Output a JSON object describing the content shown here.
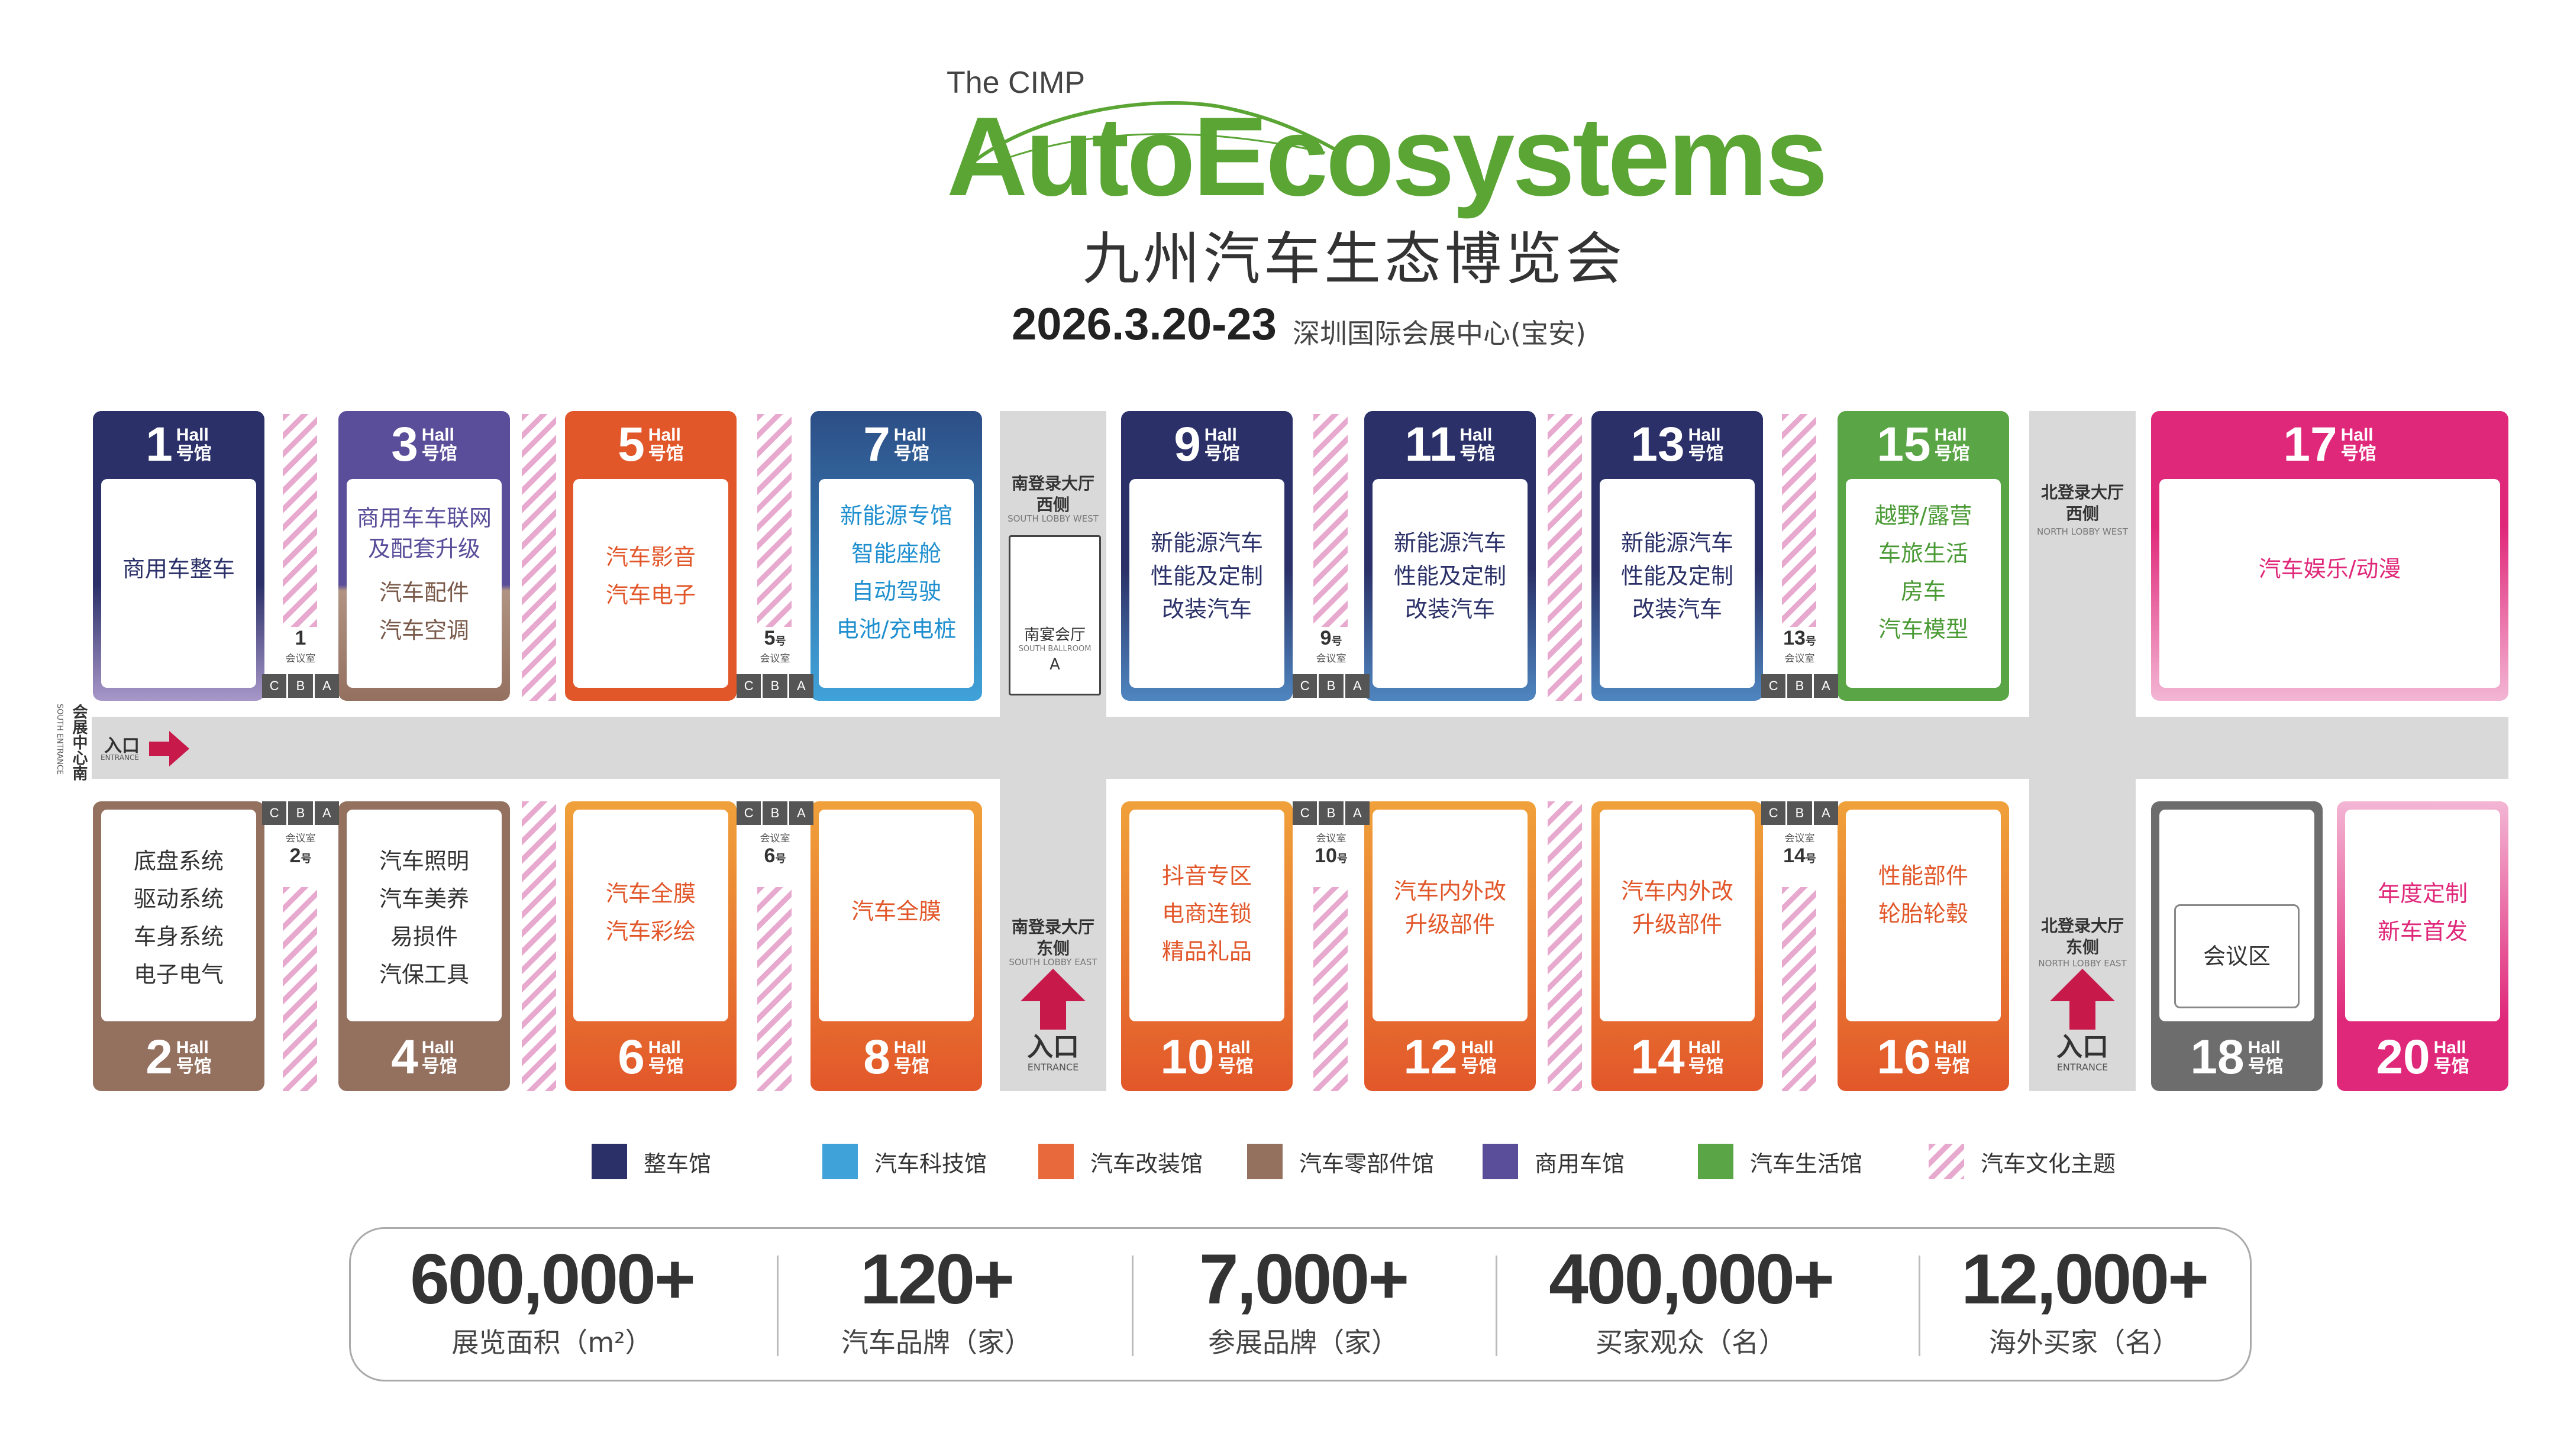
{
  "header": {
    "brand_small": "The CIMP",
    "brand_main": "AutoEcosystems",
    "brand_cn": "九州汽车生态博览会",
    "date": "2026.3.20-23",
    "venue": "深圳国际会展中心(宝安)"
  },
  "hall_tag": {
    "en": "Hall",
    "cn": "号馆"
  },
  "colors": {
    "navy": "#2b3168",
    "sky": "#3fa2d8",
    "orange": "#e2572a",
    "brown": "#94705f",
    "purple": "#5a4e9a",
    "green": "#5aa545",
    "pink": "#e0287a",
    "gray": "#6d6d6d",
    "stripe": "#e8a9cf"
  },
  "halls_top": [
    {
      "num": "1",
      "lines": [
        "商用车整车"
      ]
    },
    {
      "num": "3",
      "lines": [
        "商用车车联网",
        "及配套升级",
        "汽车配件",
        "汽车空调"
      ]
    },
    {
      "num": "5",
      "lines": [
        "汽车影音",
        "汽车电子"
      ]
    },
    {
      "num": "7",
      "lines": [
        "新能源专馆",
        "智能座舱",
        "自动驾驶",
        "电池/充电桩"
      ]
    },
    {
      "num": "9",
      "lines": [
        "新能源汽车",
        "性能及定制",
        "改装汽车"
      ]
    },
    {
      "num": "11",
      "lines": [
        "新能源汽车",
        "性能及定制",
        "改装汽车"
      ]
    },
    {
      "num": "13",
      "lines": [
        "新能源汽车",
        "性能及定制",
        "改装汽车"
      ]
    },
    {
      "num": "15",
      "lines": [
        "越野/露营",
        "车旅生活",
        "房车",
        "汽车模型"
      ]
    },
    {
      "num": "17",
      "lines": [
        "汽车娱乐/动漫"
      ]
    }
  ],
  "halls_bottom": [
    {
      "num": "2",
      "lines": [
        "底盘系统",
        "驱动系统",
        "车身系统",
        "电子电气"
      ]
    },
    {
      "num": "4",
      "lines": [
        "汽车照明",
        "汽车美养",
        "易损件",
        "汽保工具"
      ]
    },
    {
      "num": "6",
      "lines": [
        "汽车全膜",
        "汽车彩绘"
      ]
    },
    {
      "num": "8",
      "lines": [
        "汽车全膜"
      ]
    },
    {
      "num": "10",
      "lines": [
        "抖音专区",
        "电商连锁",
        "精品礼品"
      ]
    },
    {
      "num": "12",
      "lines": [
        "汽车内外改",
        "升级部件"
      ]
    },
    {
      "num": "14",
      "lines": [
        "汽车内外改",
        "升级部件"
      ]
    },
    {
      "num": "16",
      "lines": [
        "性能部件",
        "轮胎轮毂"
      ]
    },
    {
      "num": "18",
      "lines": [
        "会议区"
      ]
    },
    {
      "num": "20",
      "lines": [
        "年度定制",
        "新车首发"
      ]
    }
  ],
  "meeting_rooms": {
    "label": "会议室",
    "suffix": "号",
    "letters": [
      "C",
      "B",
      "A"
    ],
    "top": [
      "1",
      "5",
      "9",
      "13"
    ],
    "bottom": [
      "2",
      "6",
      "10",
      "14"
    ]
  },
  "lobbies": {
    "south_west_cn": "南登录大厅\n西侧",
    "south_west_en": "SOUTH LOBBY WEST",
    "south_ballroom_cn": "南宴会厅",
    "south_ballroom_en": "SOUTH BALLROOM",
    "south_ballroom_letter": "A",
    "south_east_cn": "南登录大厅\n东侧",
    "south_east_en": "SOUTH LOBBY EAST",
    "north_west_cn": "北登录大厅\n西侧",
    "north_west_en": "NORTH LOBBY WEST",
    "north_east_cn": "北登录大厅\n东侧",
    "north_east_en": "NORTH LOBBY EAST"
  },
  "entrances": {
    "cn": "入口",
    "en": "ENTRANCE",
    "south_cn": "会展中心南",
    "south_en": "SOUTH ENTRANCE"
  },
  "legend": [
    {
      "label": "整车馆",
      "color": "#2b3168"
    },
    {
      "label": "汽车科技馆",
      "color": "#3fa2d8"
    },
    {
      "label": "汽车改装馆",
      "color": "#e86a3c"
    },
    {
      "label": "汽车零部件馆",
      "color": "#94705f"
    },
    {
      "label": "商用车馆",
      "color": "#5a4e9a"
    },
    {
      "label": "汽车生活馆",
      "color": "#5aa545"
    },
    {
      "label": "汽车文化主题",
      "color": "stripe"
    }
  ],
  "stats": [
    {
      "value": "600,000+",
      "label": "展览面积（m²）"
    },
    {
      "value": "120+",
      "label": "汽车品牌（家）"
    },
    {
      "value": "7,000+",
      "label": "参展品牌（家）"
    },
    {
      "value": "400,000+",
      "label": "买家观众（名）"
    },
    {
      "value": "12,000+",
      "label": "海外买家（名）"
    }
  ]
}
